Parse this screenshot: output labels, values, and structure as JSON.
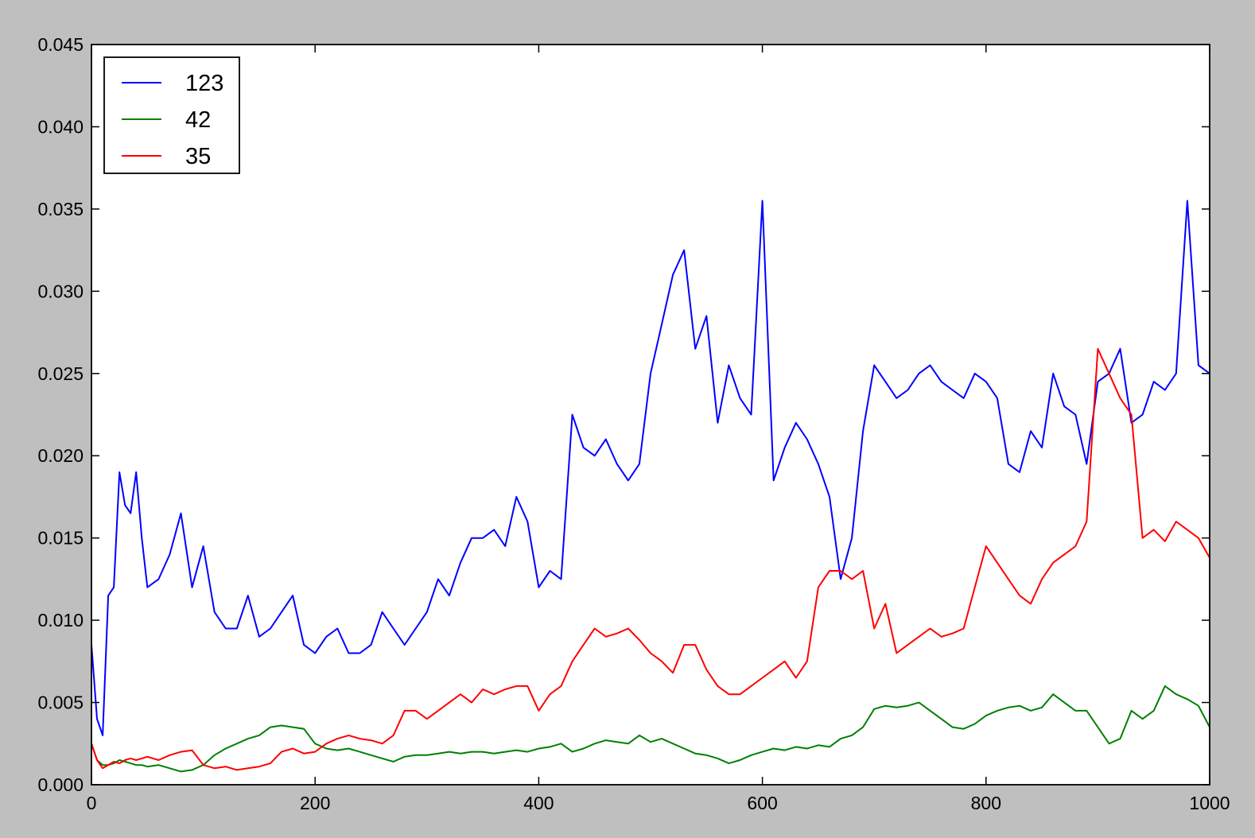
{
  "colors": {
    "figure_background": "#bfbfbf",
    "plot_background": "#ffffff",
    "axis": "#000000"
  },
  "chart_data": {
    "type": "line",
    "title": "",
    "xlabel": "",
    "ylabel": "",
    "xlim": [
      0,
      1000
    ],
    "ylim": [
      0,
      0.045
    ],
    "grid": false,
    "legend_position": "top-left",
    "x_ticks": [
      0,
      200,
      400,
      600,
      800,
      1000
    ],
    "x_tick_labels": [
      "0",
      "200",
      "400",
      "600",
      "800",
      "1000"
    ],
    "y_ticks": [
      0,
      0.005,
      0.01,
      0.015,
      0.02,
      0.025,
      0.03,
      0.035,
      0.04,
      0.045
    ],
    "y_tick_labels": [
      "0.000",
      "0.005",
      "0.010",
      "0.015",
      "0.020",
      "0.025",
      "0.030",
      "0.035",
      "0.040",
      "0.045"
    ],
    "x": [
      0,
      5,
      10,
      15,
      20,
      25,
      30,
      35,
      40,
      45,
      50,
      60,
      70,
      80,
      90,
      100,
      110,
      120,
      130,
      140,
      150,
      160,
      170,
      180,
      190,
      200,
      210,
      220,
      230,
      240,
      250,
      260,
      270,
      280,
      290,
      300,
      310,
      320,
      330,
      340,
      350,
      360,
      370,
      380,
      390,
      400,
      410,
      420,
      430,
      440,
      450,
      460,
      470,
      480,
      490,
      500,
      510,
      520,
      530,
      540,
      550,
      560,
      570,
      580,
      590,
      600,
      610,
      620,
      630,
      640,
      650,
      660,
      670,
      680,
      690,
      700,
      710,
      720,
      730,
      740,
      750,
      760,
      770,
      780,
      790,
      800,
      810,
      820,
      830,
      840,
      850,
      860,
      870,
      880,
      890,
      900,
      910,
      920,
      930,
      940,
      950,
      960,
      970,
      980,
      990,
      1000
    ],
    "series": [
      {
        "name": "123",
        "color": "#0000ff",
        "values": [
          0.0085,
          0.004,
          0.003,
          0.0115,
          0.012,
          0.019,
          0.017,
          0.0165,
          0.019,
          0.015,
          0.012,
          0.0125,
          0.014,
          0.0165,
          0.012,
          0.0145,
          0.0105,
          0.0095,
          0.0095,
          0.0115,
          0.009,
          0.0095,
          0.0105,
          0.0115,
          0.0085,
          0.008,
          0.009,
          0.0095,
          0.008,
          0.008,
          0.0085,
          0.0105,
          0.0095,
          0.0085,
          0.0095,
          0.0105,
          0.0125,
          0.0115,
          0.0135,
          0.015,
          0.015,
          0.0155,
          0.0145,
          0.0175,
          0.016,
          0.012,
          0.013,
          0.0125,
          0.0225,
          0.0205,
          0.02,
          0.021,
          0.0195,
          0.0185,
          0.0195,
          0.025,
          0.028,
          0.031,
          0.0325,
          0.0265,
          0.0285,
          0.022,
          0.0255,
          0.0235,
          0.0225,
          0.0355,
          0.0185,
          0.0205,
          0.022,
          0.021,
          0.0195,
          0.0175,
          0.0125,
          0.015,
          0.0215,
          0.0255,
          0.0245,
          0.0235,
          0.024,
          0.025,
          0.0255,
          0.0245,
          0.024,
          0.0235,
          0.025,
          0.0245,
          0.0235,
          0.0195,
          0.019,
          0.0215,
          0.0205,
          0.025,
          0.023,
          0.0225,
          0.0195,
          0.0245,
          0.025,
          0.0265,
          0.022,
          0.0225,
          0.0245,
          0.024,
          0.025,
          0.0355,
          0.0255,
          0.025
        ]
      },
      {
        "name": "42",
        "color": "#008000",
        "values": [
          0.0025,
          0.0015,
          0.0012,
          0.0012,
          0.0013,
          0.0015,
          0.0014,
          0.0013,
          0.0012,
          0.0012,
          0.0011,
          0.0012,
          0.001,
          0.0008,
          0.0009,
          0.0012,
          0.0018,
          0.0022,
          0.0025,
          0.0028,
          0.003,
          0.0035,
          0.0036,
          0.0035,
          0.0034,
          0.0025,
          0.0022,
          0.0021,
          0.0022,
          0.002,
          0.0018,
          0.0016,
          0.0014,
          0.0017,
          0.0018,
          0.0018,
          0.0019,
          0.002,
          0.0019,
          0.002,
          0.002,
          0.0019,
          0.002,
          0.0021,
          0.002,
          0.0022,
          0.0023,
          0.0025,
          0.002,
          0.0022,
          0.0025,
          0.0027,
          0.0026,
          0.0025,
          0.003,
          0.0026,
          0.0028,
          0.0025,
          0.0022,
          0.0019,
          0.0018,
          0.0016,
          0.0013,
          0.0015,
          0.0018,
          0.002,
          0.0022,
          0.0021,
          0.0023,
          0.0022,
          0.0024,
          0.0023,
          0.0028,
          0.003,
          0.0035,
          0.0046,
          0.0048,
          0.0047,
          0.0048,
          0.005,
          0.0045,
          0.004,
          0.0035,
          0.0034,
          0.0037,
          0.0042,
          0.0045,
          0.0047,
          0.0048,
          0.0045,
          0.0047,
          0.0055,
          0.005,
          0.0045,
          0.0045,
          0.0035,
          0.0025,
          0.0028,
          0.0045,
          0.004,
          0.0045,
          0.006,
          0.0055,
          0.0052,
          0.0048,
          0.0035
        ]
      },
      {
        "name": "35",
        "color": "#ff0000",
        "values": [
          0.0025,
          0.0015,
          0.001,
          0.0012,
          0.0014,
          0.0013,
          0.0015,
          0.0016,
          0.0015,
          0.0016,
          0.0017,
          0.0015,
          0.0018,
          0.002,
          0.0021,
          0.0012,
          0.001,
          0.0011,
          0.0009,
          0.001,
          0.0011,
          0.0013,
          0.002,
          0.0022,
          0.0019,
          0.002,
          0.0025,
          0.0028,
          0.003,
          0.0028,
          0.0027,
          0.0025,
          0.003,
          0.0045,
          0.0045,
          0.004,
          0.0045,
          0.005,
          0.0055,
          0.005,
          0.0058,
          0.0055,
          0.0058,
          0.006,
          0.006,
          0.0045,
          0.0055,
          0.006,
          0.0075,
          0.0085,
          0.0095,
          0.009,
          0.0092,
          0.0095,
          0.0088,
          0.008,
          0.0075,
          0.0068,
          0.0085,
          0.0085,
          0.007,
          0.006,
          0.0055,
          0.0055,
          0.006,
          0.0065,
          0.007,
          0.0075,
          0.0065,
          0.0075,
          0.012,
          0.013,
          0.013,
          0.0125,
          0.013,
          0.0095,
          0.011,
          0.008,
          0.0085,
          0.009,
          0.0095,
          0.009,
          0.0092,
          0.0095,
          0.012,
          0.0145,
          0.0135,
          0.0125,
          0.0115,
          0.011,
          0.0125,
          0.0135,
          0.014,
          0.0145,
          0.016,
          0.0265,
          0.025,
          0.0235,
          0.0225,
          0.015,
          0.0155,
          0.0148,
          0.016,
          0.0155,
          0.015,
          0.0138
        ]
      }
    ]
  }
}
